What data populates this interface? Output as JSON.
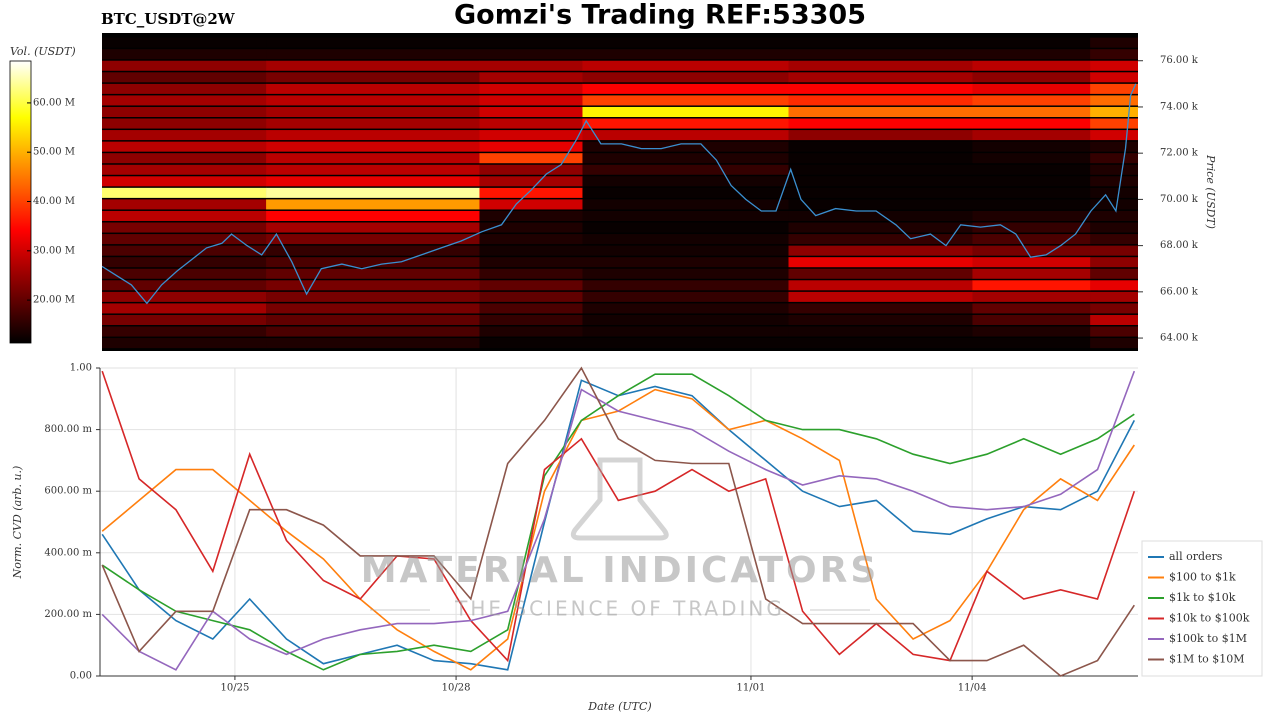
{
  "title": "Gomzi's Trading REF:53305",
  "watermark": {
    "title": "MATERIAL INDICATORS",
    "subtitle": "THE SCIENCE OF TRADING"
  },
  "chart_data": [
    {
      "type": "heatmap",
      "title": "BTC_USDT@2W",
      "y_label": "Price (USDT)",
      "colorbar_label": "Vol. (USDT)",
      "colorscale": "hot",
      "xlim": [
        0.17,
        14.25
      ],
      "ylim": [
        63.44,
        77.2
      ],
      "yticks": [
        {
          "value": 64,
          "label": "64.00 k"
        },
        {
          "value": 66,
          "label": "66.00 k"
        },
        {
          "value": 68,
          "label": "68.00 k"
        },
        {
          "value": 70,
          "label": "70.00 k"
        },
        {
          "value": 72,
          "label": "72.00 k"
        },
        {
          "value": 74,
          "label": "74.00 k"
        },
        {
          "value": 76,
          "label": "76.00 k"
        }
      ],
      "zlim": [
        11.3,
        68.5
      ],
      "zticks": [
        {
          "value": 20,
          "label": "20.00 M"
        },
        {
          "value": 30,
          "label": "30.00 M"
        },
        {
          "value": 40,
          "label": "40.00 M"
        },
        {
          "value": 50,
          "label": "50.00 M"
        },
        {
          "value": 60,
          "label": "60.00 M"
        }
      ],
      "x_edges": [
        0.17,
        2.4,
        5.3,
        6.7,
        9.5,
        12.0,
        13.6,
        14.25
      ],
      "y_edges": [
        63.5,
        64,
        64.5,
        65,
        65.5,
        66,
        66.5,
        67,
        67.5,
        68,
        68.5,
        69,
        69.5,
        70,
        70.5,
        71,
        71.5,
        72,
        72.5,
        73,
        73.5,
        74,
        74.5,
        75,
        75.5,
        76,
        76.5,
        77
      ],
      "z": [
        [
          14,
          14,
          12,
          12,
          12,
          12,
          14
        ],
        [
          16,
          18,
          14,
          13,
          13,
          14,
          18
        ],
        [
          22,
          20,
          16,
          13,
          14,
          18,
          28
        ],
        [
          26,
          22,
          18,
          14,
          16,
          20,
          22
        ],
        [
          24,
          22,
          20,
          16,
          28,
          26,
          26
        ],
        [
          20,
          22,
          20,
          16,
          28,
          36,
          32
        ],
        [
          18,
          20,
          16,
          14,
          20,
          26,
          20
        ],
        [
          16,
          18,
          14,
          14,
          32,
          30,
          24
        ],
        [
          18,
          16,
          13,
          13,
          24,
          22,
          22
        ],
        [
          20,
          22,
          14,
          13,
          16,
          18,
          16
        ],
        [
          22,
          26,
          14,
          12,
          14,
          16,
          14
        ],
        [
          28,
          34,
          14,
          13,
          13,
          14,
          14
        ],
        [
          26,
          48,
          30,
          13,
          12,
          12,
          13
        ],
        [
          62,
          64,
          36,
          12,
          12,
          12,
          13
        ],
        [
          30,
          32,
          26,
          13,
          12,
          12,
          14
        ],
        [
          26,
          28,
          24,
          16,
          12,
          12,
          14
        ],
        [
          24,
          28,
          40,
          14,
          12,
          13,
          16
        ],
        [
          28,
          30,
          32,
          14,
          12,
          13,
          14
        ],
        [
          26,
          28,
          30,
          28,
          24,
          26,
          30
        ],
        [
          24,
          26,
          28,
          36,
          34,
          34,
          40
        ],
        [
          24,
          26,
          30,
          56,
          44,
          44,
          50
        ],
        [
          26,
          28,
          30,
          40,
          38,
          40,
          44
        ],
        [
          24,
          28,
          30,
          34,
          34,
          32,
          40
        ],
        [
          20,
          22,
          26,
          24,
          26,
          24,
          30
        ],
        [
          24,
          26,
          26,
          28,
          26,
          28,
          30
        ],
        [
          14,
          14,
          14,
          14,
          14,
          14,
          16
        ],
        [
          12,
          12,
          12,
          12,
          12,
          12,
          14
        ]
      ],
      "line": {
        "color": "#3a8fd0",
        "x": [
          0.17,
          0.37,
          0.57,
          0.78,
          0.98,
          1.19,
          1.39,
          1.59,
          1.8,
          1.93,
          2.14,
          2.34,
          2.54,
          2.75,
          2.95,
          3.15,
          3.43,
          3.7,
          3.97,
          4.24,
          4.51,
          4.78,
          5.05,
          5.33,
          5.6,
          5.8,
          6.0,
          6.21,
          6.41,
          6.62,
          6.75,
          6.95,
          7.23,
          7.5,
          7.77,
          8.04,
          8.31,
          8.52,
          8.72,
          8.92,
          9.13,
          9.33,
          9.53,
          9.67,
          9.87,
          10.14,
          10.42,
          10.69,
          10.96,
          11.16,
          11.43,
          11.64,
          11.84,
          12.11,
          12.38,
          12.59,
          12.79,
          13.0,
          13.2,
          13.4,
          13.61,
          13.81,
          13.95,
          14.08,
          14.15,
          14.22
        ],
        "values": [
          67.1,
          66.7,
          66.3,
          65.5,
          66.3,
          66.9,
          67.4,
          67.9,
          68.1,
          68.5,
          68.0,
          67.6,
          68.5,
          67.3,
          65.9,
          67.0,
          67.2,
          67.0,
          67.2,
          67.3,
          67.6,
          67.9,
          68.2,
          68.6,
          68.9,
          69.8,
          70.4,
          71.1,
          71.5,
          72.6,
          73.4,
          72.4,
          72.4,
          72.2,
          72.2,
          72.4,
          72.4,
          71.7,
          70.6,
          70.0,
          69.5,
          69.5,
          71.3,
          70.0,
          69.3,
          69.6,
          69.5,
          69.5,
          68.9,
          68.3,
          68.5,
          68.0,
          68.9,
          68.8,
          68.9,
          68.5,
          67.5,
          67.6,
          68.0,
          68.5,
          69.5,
          70.2,
          69.5,
          72.2,
          74.5,
          75.0
        ]
      }
    },
    {
      "type": "line",
      "x_label": "Date (UTC)",
      "y_label": "Norm. CVD (arb. u.)",
      "xlim": [
        0.17,
        14.25
      ],
      "xticks": [
        {
          "value": 2,
          "label": "10/25"
        },
        {
          "value": 5,
          "label": "10/28"
        },
        {
          "value": 9,
          "label": "11/01"
        },
        {
          "value": 12,
          "label": "11/04"
        }
      ],
      "ylim": [
        0,
        1
      ],
      "yticks": [
        {
          "value": 0,
          "label": "0.00"
        },
        {
          "value": 0.2,
          "label": "200.00 m"
        },
        {
          "value": 0.4,
          "label": "400.00 m"
        },
        {
          "value": 0.6,
          "label": "600.00 m"
        },
        {
          "value": 0.8,
          "label": "800.00 m"
        },
        {
          "value": 1,
          "label": "1.00"
        }
      ],
      "grid": true,
      "legend": "lower right",
      "x": [
        0.2,
        0.7,
        1.2,
        1.7,
        2.2,
        2.7,
        3.2,
        3.7,
        4.2,
        4.7,
        5.2,
        5.7,
        6.2,
        6.7,
        7.2,
        7.7,
        8.2,
        8.7,
        9.2,
        9.7,
        10.2,
        10.7,
        11.2,
        11.7,
        12.2,
        12.7,
        13.2,
        13.7,
        14.2
      ],
      "series": [
        {
          "name": "all orders",
          "color": "#1f77b4",
          "values": [
            0.46,
            0.28,
            0.18,
            0.12,
            0.25,
            0.12,
            0.04,
            0.07,
            0.1,
            0.05,
            0.04,
            0.02,
            0.5,
            0.96,
            0.91,
            0.94,
            0.91,
            0.8,
            0.7,
            0.6,
            0.55,
            0.57,
            0.47,
            0.46,
            0.51,
            0.55,
            0.54,
            0.6,
            0.83
          ]
        },
        {
          "name": "$100 to $1k",
          "color": "#ff7f0e",
          "values": [
            0.47,
            0.57,
            0.67,
            0.67,
            0.57,
            0.47,
            0.38,
            0.25,
            0.15,
            0.08,
            0.02,
            0.12,
            0.6,
            0.83,
            0.86,
            0.93,
            0.9,
            0.8,
            0.83,
            0.77,
            0.7,
            0.25,
            0.12,
            0.18,
            0.34,
            0.54,
            0.64,
            0.57,
            0.75
          ]
        },
        {
          "name": "$1k to $10k",
          "color": "#2ca02c",
          "values": [
            0.36,
            0.28,
            0.21,
            0.18,
            0.15,
            0.08,
            0.02,
            0.07,
            0.08,
            0.1,
            0.08,
            0.15,
            0.65,
            0.83,
            0.91,
            0.98,
            0.98,
            0.91,
            0.83,
            0.8,
            0.8,
            0.77,
            0.72,
            0.69,
            0.72,
            0.77,
            0.72,
            0.77,
            0.85
          ]
        },
        {
          "name": "$10k to $100k",
          "color": "#d62728",
          "values": [
            0.99,
            0.64,
            0.54,
            0.34,
            0.72,
            0.44,
            0.31,
            0.25,
            0.39,
            0.38,
            0.18,
            0.05,
            0.67,
            0.77,
            0.57,
            0.6,
            0.67,
            0.6,
            0.64,
            0.21,
            0.07,
            0.17,
            0.07,
            0.05,
            0.34,
            0.25,
            0.28,
            0.25,
            0.6
          ]
        },
        {
          "name": "$100k to $1M",
          "color": "#9467bd",
          "values": [
            0.2,
            0.08,
            0.02,
            0.21,
            0.12,
            0.07,
            0.12,
            0.15,
            0.17,
            0.17,
            0.18,
            0.21,
            0.51,
            0.93,
            0.86,
            0.83,
            0.8,
            0.73,
            0.67,
            0.62,
            0.65,
            0.64,
            0.6,
            0.55,
            0.54,
            0.55,
            0.59,
            0.67,
            0.99
          ]
        },
        {
          "name": "$1M to $10M",
          "color": "#8c564b",
          "values": [
            0.36,
            0.08,
            0.21,
            0.21,
            0.54,
            0.54,
            0.49,
            0.39,
            0.39,
            0.39,
            0.25,
            0.69,
            0.83,
            1.0,
            0.77,
            0.7,
            0.69,
            0.69,
            0.25,
            0.17,
            0.17,
            0.17,
            0.17,
            0.05,
            0.05,
            0.1,
            0.0,
            0.05,
            0.23
          ]
        }
      ]
    }
  ]
}
